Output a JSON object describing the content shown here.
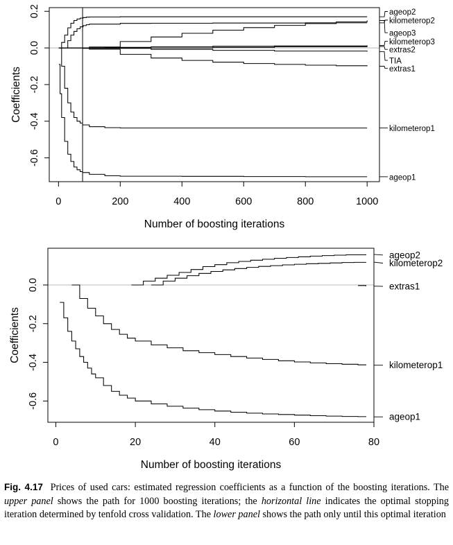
{
  "chart_data": [
    {
      "type": "line",
      "panel": "upper",
      "xlabel": "Number of boosting iterations",
      "ylabel": "Coefficients",
      "xlim": [
        -30,
        1040
      ],
      "ylim": [
        -0.73,
        0.22
      ],
      "xticks": [
        0,
        200,
        400,
        600,
        800,
        1000
      ],
      "yticks": [
        0.2,
        0.0,
        -0.2,
        -0.4,
        -0.6
      ],
      "ytick_labels": [
        "0.2",
        "0.0",
        "-0.2",
        "-0.4",
        "-0.6"
      ],
      "stopping_iteration": 78,
      "series": [
        {
          "name": "ageop2",
          "label_y": 0.199,
          "x": [
            1,
            10,
            20,
            30,
            40,
            50,
            60,
            70,
            80,
            90,
            100,
            200,
            300,
            400,
            500,
            600,
            700,
            800,
            900,
            1000
          ],
          "y": [
            0,
            0.03,
            0.07,
            0.11,
            0.135,
            0.15,
            0.158,
            0.163,
            0.166,
            0.168,
            0.169,
            0.17,
            0.17,
            0.17,
            0.17,
            0.17,
            0.17,
            0.17,
            0.17,
            0.17
          ]
        },
        {
          "name": "kilometerop2",
          "label_y": 0.152,
          "x": [
            1,
            20,
            30,
            40,
            50,
            60,
            70,
            80,
            90,
            100,
            200,
            300,
            400,
            500,
            600,
            700,
            800,
            900,
            1000
          ],
          "y": [
            0,
            0,
            0.04,
            0.07,
            0.09,
            0.105,
            0.115,
            0.122,
            0.127,
            0.13,
            0.134,
            0.135,
            0.135,
            0.136,
            0.136,
            0.136,
            0.137,
            0.137,
            0.137
          ]
        },
        {
          "name": "ageop3",
          "label_y": 0.083,
          "x": [
            1,
            80,
            100,
            200,
            300,
            400,
            500,
            600,
            700,
            800,
            900,
            1000
          ],
          "y": [
            0,
            0,
            0.005,
            0.035,
            0.06,
            0.08,
            0.097,
            0.111,
            0.123,
            0.133,
            0.142,
            0.15
          ]
        },
        {
          "name": "kilometerop3",
          "label_y": 0.037,
          "x": [
            1,
            150,
            300,
            500,
            700,
            1000
          ],
          "y": [
            0,
            0.003,
            0.006,
            0.009,
            0.011,
            0.014
          ]
        },
        {
          "name": "extras2",
          "label_y": -0.008,
          "x": [
            1,
            300,
            500,
            700,
            1000
          ],
          "y": [
            0,
            0,
            0.003,
            0.006,
            0.008
          ]
        },
        {
          "name": "TIA",
          "label_y": -0.068,
          "x": [
            1,
            100,
            300,
            500,
            700,
            1000
          ],
          "y": [
            0,
            -0.002,
            -0.008,
            -0.013,
            -0.017,
            -0.02
          ]
        },
        {
          "name": "extras1",
          "label_y": -0.112,
          "x": [
            1,
            78,
            100,
            200,
            300,
            400,
            500,
            600,
            700,
            800,
            900,
            1000
          ],
          "y": [
            0,
            -0.002,
            -0.007,
            -0.035,
            -0.055,
            -0.068,
            -0.078,
            -0.085,
            -0.09,
            -0.094,
            -0.097,
            -0.1
          ]
        },
        {
          "name": "kilometerop1",
          "label_y": -0.437,
          "x": [
            4,
            10,
            20,
            30,
            40,
            50,
            60,
            70,
            78,
            100,
            150,
            200,
            400,
            600,
            800,
            1000
          ],
          "y": [
            0,
            -0.1,
            -0.22,
            -0.3,
            -0.35,
            -0.38,
            -0.4,
            -0.41,
            -0.42,
            -0.43,
            -0.435,
            -0.437,
            -0.437,
            -0.437,
            -0.437,
            -0.437
          ]
        },
        {
          "name": "ageop1",
          "label_y": -0.703,
          "x": [
            1,
            5,
            10,
            20,
            30,
            40,
            50,
            60,
            70,
            78,
            100,
            150,
            200,
            400,
            600,
            800,
            1000
          ],
          "y": [
            -0.09,
            -0.25,
            -0.38,
            -0.51,
            -0.58,
            -0.62,
            -0.65,
            -0.665,
            -0.675,
            -0.68,
            -0.69,
            -0.698,
            -0.7,
            -0.701,
            -0.702,
            -0.703,
            -0.703
          ]
        }
      ]
    },
    {
      "type": "line",
      "panel": "lower",
      "xlabel": "Number of boosting iterations",
      "ylabel": "Coefficients",
      "xlim": [
        -2,
        80
      ],
      "ylim": [
        -0.71,
        0.19
      ],
      "xticks": [
        0,
        20,
        40,
        60,
        80
      ],
      "yticks": [
        0.0,
        -0.2,
        -0.4,
        -0.6
      ],
      "ytick_labels": [
        "0.0",
        "-0.2",
        "-0.4",
        "-0.6"
      ],
      "series": [
        {
          "name": "ageop2",
          "label_y": 0.155,
          "x": [
            19,
            22,
            25,
            28,
            31,
            34,
            37,
            40,
            43,
            46,
            49,
            52,
            55,
            58,
            61,
            64,
            67,
            70,
            73,
            78
          ],
          "y": [
            0,
            0.02,
            0.035,
            0.05,
            0.065,
            0.08,
            0.095,
            0.105,
            0.115,
            0.122,
            0.128,
            0.133,
            0.138,
            0.142,
            0.146,
            0.149,
            0.152,
            0.154,
            0.156,
            0.158
          ]
        },
        {
          "name": "kilometerop2",
          "label_y": 0.113,
          "x": [
            24,
            27,
            30,
            33,
            36,
            39,
            42,
            45,
            48,
            51,
            54,
            57,
            60,
            63,
            66,
            69,
            72,
            75,
            78
          ],
          "y": [
            0,
            0.02,
            0.035,
            0.048,
            0.06,
            0.07,
            0.078,
            0.085,
            0.091,
            0.096,
            0.1,
            0.104,
            0.107,
            0.11,
            0.112,
            0.114,
            0.116,
            0.117,
            0.118
          ]
        },
        {
          "name": "extras1",
          "label_y": -0.007,
          "x": [
            76,
            78
          ],
          "y": [
            -0.003,
            -0.006
          ]
        },
        {
          "name": "kilometerop1",
          "label_y": -0.415,
          "x": [
            4,
            6,
            8,
            10,
            12,
            14,
            16,
            18,
            20,
            24,
            28,
            32,
            36,
            40,
            44,
            48,
            52,
            56,
            60,
            64,
            68,
            72,
            76,
            78
          ],
          "y": [
            0,
            -0.07,
            -0.12,
            -0.16,
            -0.2,
            -0.23,
            -0.255,
            -0.275,
            -0.29,
            -0.31,
            -0.325,
            -0.34,
            -0.35,
            -0.36,
            -0.37,
            -0.378,
            -0.385,
            -0.392,
            -0.398,
            -0.403,
            -0.407,
            -0.41,
            -0.413,
            -0.415
          ]
        },
        {
          "name": "ageop1",
          "label_y": -0.682,
          "x": [
            1,
            2,
            3,
            4,
            5,
            6,
            7,
            8,
            9,
            10,
            12,
            14,
            16,
            18,
            20,
            24,
            28,
            32,
            36,
            40,
            44,
            48,
            52,
            56,
            60,
            64,
            68,
            72,
            76,
            78
          ],
          "y": [
            -0.09,
            -0.17,
            -0.24,
            -0.29,
            -0.33,
            -0.37,
            -0.4,
            -0.43,
            -0.46,
            -0.48,
            -0.52,
            -0.55,
            -0.57,
            -0.585,
            -0.6,
            -0.615,
            -0.627,
            -0.637,
            -0.645,
            -0.652,
            -0.658,
            -0.663,
            -0.667,
            -0.67,
            -0.673,
            -0.676,
            -0.678,
            -0.68,
            -0.681,
            -0.682
          ]
        }
      ]
    }
  ],
  "caption": {
    "label": "Fig. 4.17",
    "parts": [
      {
        "text": "Prices of used cars: estimated regression coefficients as a function of the boosting iterations. The ",
        "italic": false
      },
      {
        "text": "upper panel",
        "italic": true
      },
      {
        "text": " shows the path for 1000 boosting iterations; the ",
        "italic": false
      },
      {
        "text": "horizontal line",
        "italic": true
      },
      {
        "text": " indicates the optimal stopping iteration determined by tenfold cross validation. The ",
        "italic": false
      },
      {
        "text": "lower panel",
        "italic": true
      },
      {
        "text": " shows the path only until this optimal iteration",
        "italic": false
      }
    ]
  }
}
